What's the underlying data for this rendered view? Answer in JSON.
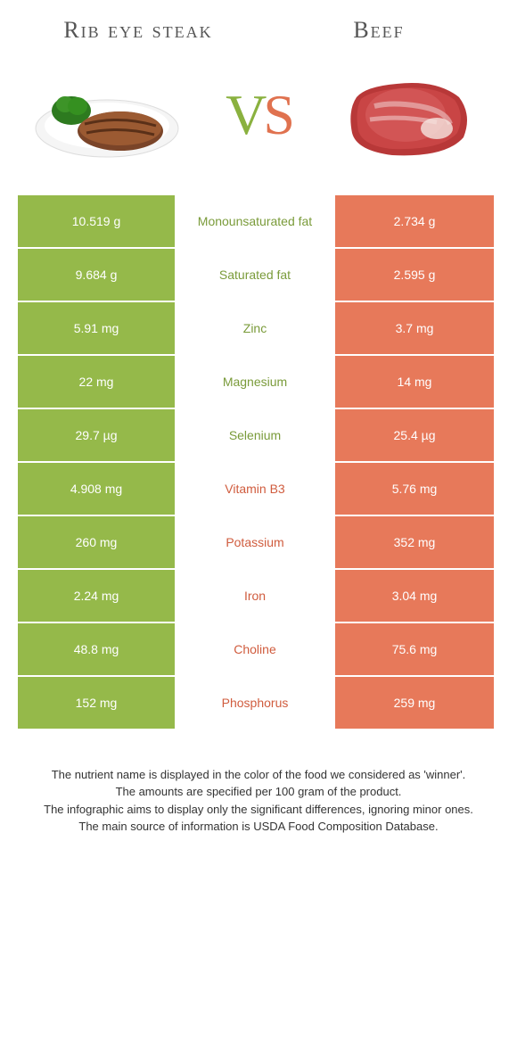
{
  "colors": {
    "left": "#95b94a",
    "right": "#e7795a",
    "left_text": "#7a9b3a",
    "right_text": "#d05c3e"
  },
  "header": {
    "left_title": "Rib eye steak",
    "right_title": "Beef",
    "vs_v": "V",
    "vs_s": "S"
  },
  "rows": [
    {
      "left": "10.519 g",
      "label": "Monounsaturated fat",
      "right": "2.734 g",
      "winner": "left"
    },
    {
      "left": "9.684 g",
      "label": "Saturated fat",
      "right": "2.595 g",
      "winner": "left"
    },
    {
      "left": "5.91 mg",
      "label": "Zinc",
      "right": "3.7 mg",
      "winner": "left"
    },
    {
      "left": "22 mg",
      "label": "Magnesium",
      "right": "14 mg",
      "winner": "left"
    },
    {
      "left": "29.7 µg",
      "label": "Selenium",
      "right": "25.4 µg",
      "winner": "left"
    },
    {
      "left": "4.908 mg",
      "label": "Vitamin B3",
      "right": "5.76 mg",
      "winner": "right"
    },
    {
      "left": "260 mg",
      "label": "Potassium",
      "right": "352 mg",
      "winner": "right"
    },
    {
      "left": "2.24 mg",
      "label": "Iron",
      "right": "3.04 mg",
      "winner": "right"
    },
    {
      "left": "48.8 mg",
      "label": "Choline",
      "right": "75.6 mg",
      "winner": "right"
    },
    {
      "left": "152 mg",
      "label": "Phosphorus",
      "right": "259 mg",
      "winner": "right"
    }
  ],
  "footer": {
    "line1": "The nutrient name is displayed in the color of the food we considered as 'winner'.",
    "line2": "The amounts are specified per 100 gram of the product.",
    "line3": "The infographic aims to display only the significant differences, ignoring minor ones.",
    "line4": "The main source of information is USDA Food Composition Database."
  }
}
